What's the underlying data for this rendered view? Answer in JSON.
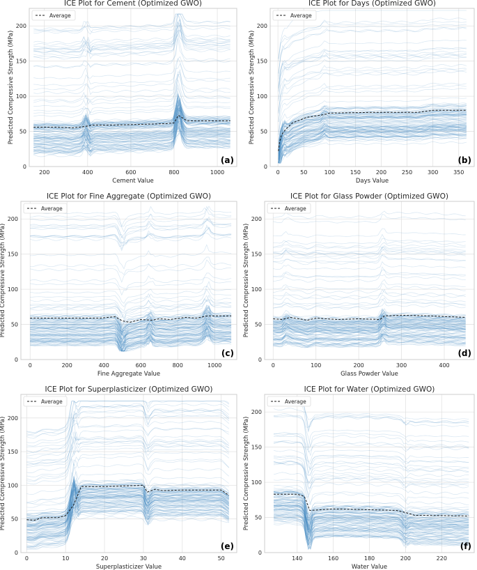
{
  "chart_data": [
    {
      "type": "line",
      "panel_label": "(a)",
      "title": "ICE Plot for Cement (Optimized GWO)",
      "xlabel": "Cement Value",
      "ylabel": "Predicted Compressive Strength (MPa)",
      "xlim": [
        130,
        1090
      ],
      "ylim": [
        0,
        225
      ],
      "xticks": [
        200,
        400,
        600,
        800,
        1000
      ],
      "yticks": [
        0,
        50,
        100,
        150,
        200
      ],
      "x_range": [
        150,
        1060
      ],
      "legend": "Average",
      "average": {
        "name": "Average",
        "x": [
          150,
          250,
          330,
          390,
          420,
          520,
          640,
          760,
          800,
          820,
          860,
          900,
          1060
        ],
        "y": [
          56,
          56,
          55,
          57,
          59,
          59,
          60,
          61,
          62,
          73,
          65,
          65,
          65
        ]
      },
      "features": [
        [
          395,
          16
        ],
        [
          820,
          28
        ],
        [
          405,
          -10
        ]
      ],
      "band": {
        "min": 14,
        "max": 217
      }
    },
    {
      "type": "line",
      "panel_label": "(b)",
      "title": "ICE Plot for Days (Optimized GWO)",
      "xlabel": "Days Value",
      "ylabel": "Predicted Compressive Strength (MPa)",
      "xlim": [
        -15,
        380
      ],
      "ylim": [
        0,
        225
      ],
      "xticks": [
        0,
        50,
        100,
        150,
        200,
        250,
        300,
        350
      ],
      "yticks": [
        0,
        50,
        100,
        150,
        200
      ],
      "x_range": [
        1,
        365
      ],
      "legend": "Average",
      "average": {
        "name": "Average",
        "x": [
          1,
          3,
          7,
          14,
          28,
          56,
          90,
          100,
          180,
          270,
          300,
          365
        ],
        "y": [
          22,
          35,
          45,
          52,
          62,
          70,
          74,
          76,
          77,
          77,
          80,
          80
        ]
      },
      "features": [
        [
          10,
          12
        ],
        [
          90,
          6
        ]
      ],
      "band": {
        "min": 5,
        "max": 222
      }
    },
    {
      "type": "line",
      "panel_label": "(c)",
      "title": "ICE Plot for Fine Aggregate (Optimized GWO)",
      "xlabel": "Fine Aggregate Value",
      "ylabel": "Predicted Compressive Strength (MPa)",
      "xlim": [
        -50,
        1120
      ],
      "ylim": [
        0,
        225
      ],
      "xticks": [
        0,
        200,
        400,
        600,
        800,
        1000
      ],
      "yticks": [
        0,
        50,
        100,
        150,
        200
      ],
      "x_range": [
        0,
        1090
      ],
      "legend": "Average",
      "average": {
        "name": "Average",
        "x": [
          0,
          380,
          460,
          500,
          540,
          600,
          660,
          700,
          760,
          840,
          900,
          960,
          1090
        ],
        "y": [
          59,
          59,
          61,
          55,
          53,
          57,
          56,
          58,
          57,
          60,
          59,
          62,
          62
        ]
      },
      "features": [
        [
          500,
          -15
        ],
        [
          650,
          10
        ],
        [
          960,
          12
        ]
      ],
      "band": {
        "min": 12,
        "max": 218
      }
    },
    {
      "type": "line",
      "panel_label": "(d)",
      "title": "ICE Plot for Glass Powder (Optimized GWO)",
      "xlabel": "Glass Powder Value",
      "ylabel": "Predicted Compressive Strength (MPa)",
      "xlim": [
        -20,
        470
      ],
      "ylim": [
        0,
        225
      ],
      "xticks": [
        0,
        100,
        200,
        300,
        400
      ],
      "yticks": [
        0,
        50,
        100,
        150,
        200
      ],
      "x_range": [
        0,
        450
      ],
      "legend": "Average",
      "average": {
        "name": "Average",
        "x": [
          0,
          20,
          40,
          60,
          80,
          100,
          150,
          200,
          250,
          260,
          300,
          370,
          450
        ],
        "y": [
          58,
          57,
          60,
          58,
          56,
          59,
          57,
          58,
          57,
          62,
          63,
          62,
          60
        ]
      },
      "features": [
        [
          255,
          10
        ],
        [
          30,
          6
        ]
      ],
      "band": {
        "min": 10,
        "max": 215
      }
    },
    {
      "type": "line",
      "panel_label": "(e)",
      "title": "ICE Plot for Superplasticizer (Optimized GWO)",
      "xlabel": "Superplasticizer Value",
      "ylabel": "Predicted Compressive Strength (MPa)",
      "xlim": [
        -1.5,
        54
      ],
      "ylim": [
        0,
        235
      ],
      "xticks": [
        0,
        10,
        20,
        30,
        40,
        50
      ],
      "yticks": [
        0,
        50,
        100,
        150,
        200
      ],
      "x_range": [
        0,
        52
      ],
      "legend": "Average",
      "average": {
        "name": "Average",
        "x": [
          0,
          2,
          4,
          8,
          10,
          12,
          14,
          20,
          30,
          31,
          33,
          35,
          40,
          50,
          52
        ],
        "y": [
          49,
          48,
          52,
          52,
          55,
          70,
          98,
          98,
          100,
          90,
          94,
          92,
          93,
          93,
          85
        ]
      },
      "features": [
        [
          12,
          40
        ],
        [
          31,
          -10
        ]
      ],
      "band": {
        "min": 5,
        "max": 225
      }
    },
    {
      "type": "line",
      "panel_label": "(f)",
      "title": "ICE Plot for Water (Optimized GWO)",
      "xlabel": "Water Value",
      "ylabel": "Predicted Compressive Strength (MPa)",
      "xlim": [
        122,
        238
      ],
      "ylim": [
        0,
        225
      ],
      "xticks": [
        140,
        160,
        180,
        200,
        220
      ],
      "yticks": [
        0,
        50,
        100,
        150,
        200
      ],
      "x_range": [
        127,
        235
      ],
      "legend": "Average",
      "average": {
        "name": "Average",
        "x": [
          127,
          140,
          144,
          147,
          160,
          180,
          195,
          200,
          205,
          210,
          235
        ],
        "y": [
          83,
          83,
          80,
          60,
          62,
          61,
          60,
          57,
          53,
          53,
          52
        ]
      },
      "features": [
        [
          146,
          -25
        ],
        [
          200,
          -8
        ]
      ],
      "band": {
        "min": 5,
        "max": 210
      }
    }
  ]
}
